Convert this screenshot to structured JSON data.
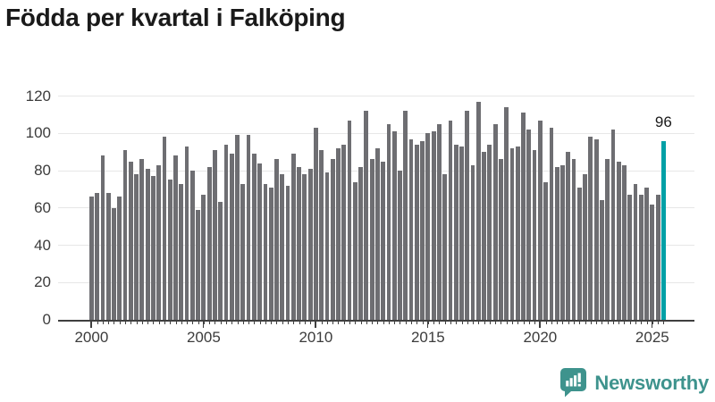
{
  "title": "Födda per kvartal i Falköping",
  "annotation": {
    "label": "96"
  },
  "branding": {
    "name": "Newsworthy",
    "color": "#3E938D"
  },
  "colors": {
    "bar": "#6E6E72",
    "highlight": "#00A0A6",
    "grid": "#E7E7E7",
    "axis": "#3F3F3F",
    "tick_text": "#3C3C3C",
    "title_text": "#1A1A1A"
  },
  "chart_data": {
    "type": "bar",
    "title": "Födda per kvartal i Falköping",
    "frequency": "quarterly",
    "start_year": 2000,
    "start_quarter": 1,
    "values": [
      66,
      68,
      88,
      68,
      60,
      66,
      91,
      85,
      78,
      86,
      81,
      77,
      83,
      98,
      75,
      88,
      73,
      93,
      80,
      59,
      67,
      82,
      91,
      63,
      94,
      89,
      99,
      73,
      99,
      89,
      84,
      73,
      71,
      86,
      78,
      72,
      89,
      82,
      78,
      81,
      103,
      91,
      79,
      86,
      92,
      94,
      107,
      74,
      82,
      112,
      86,
      92,
      85,
      105,
      101,
      80,
      112,
      97,
      94,
      96,
      100,
      101,
      105,
      78,
      107,
      94,
      93,
      112,
      83,
      117,
      90,
      94,
      105,
      86,
      114,
      92,
      93,
      111,
      102,
      91,
      107,
      74,
      103,
      82,
      83,
      90,
      86,
      71,
      78,
      98,
      97,
      64,
      86,
      102,
      85,
      83,
      67,
      73,
      67,
      71,
      62,
      67,
      96
    ],
    "highlight_index": 102,
    "highlight_label": "96",
    "xlabel": "",
    "ylabel": "",
    "xticks": [
      "2000",
      "2005",
      "2010",
      "2015",
      "2020",
      "2025"
    ],
    "yticks": [
      0,
      20,
      40,
      60,
      80,
      100,
      120
    ],
    "ylim": [
      0,
      120
    ],
    "grid": "horizontal",
    "legend": "none"
  }
}
